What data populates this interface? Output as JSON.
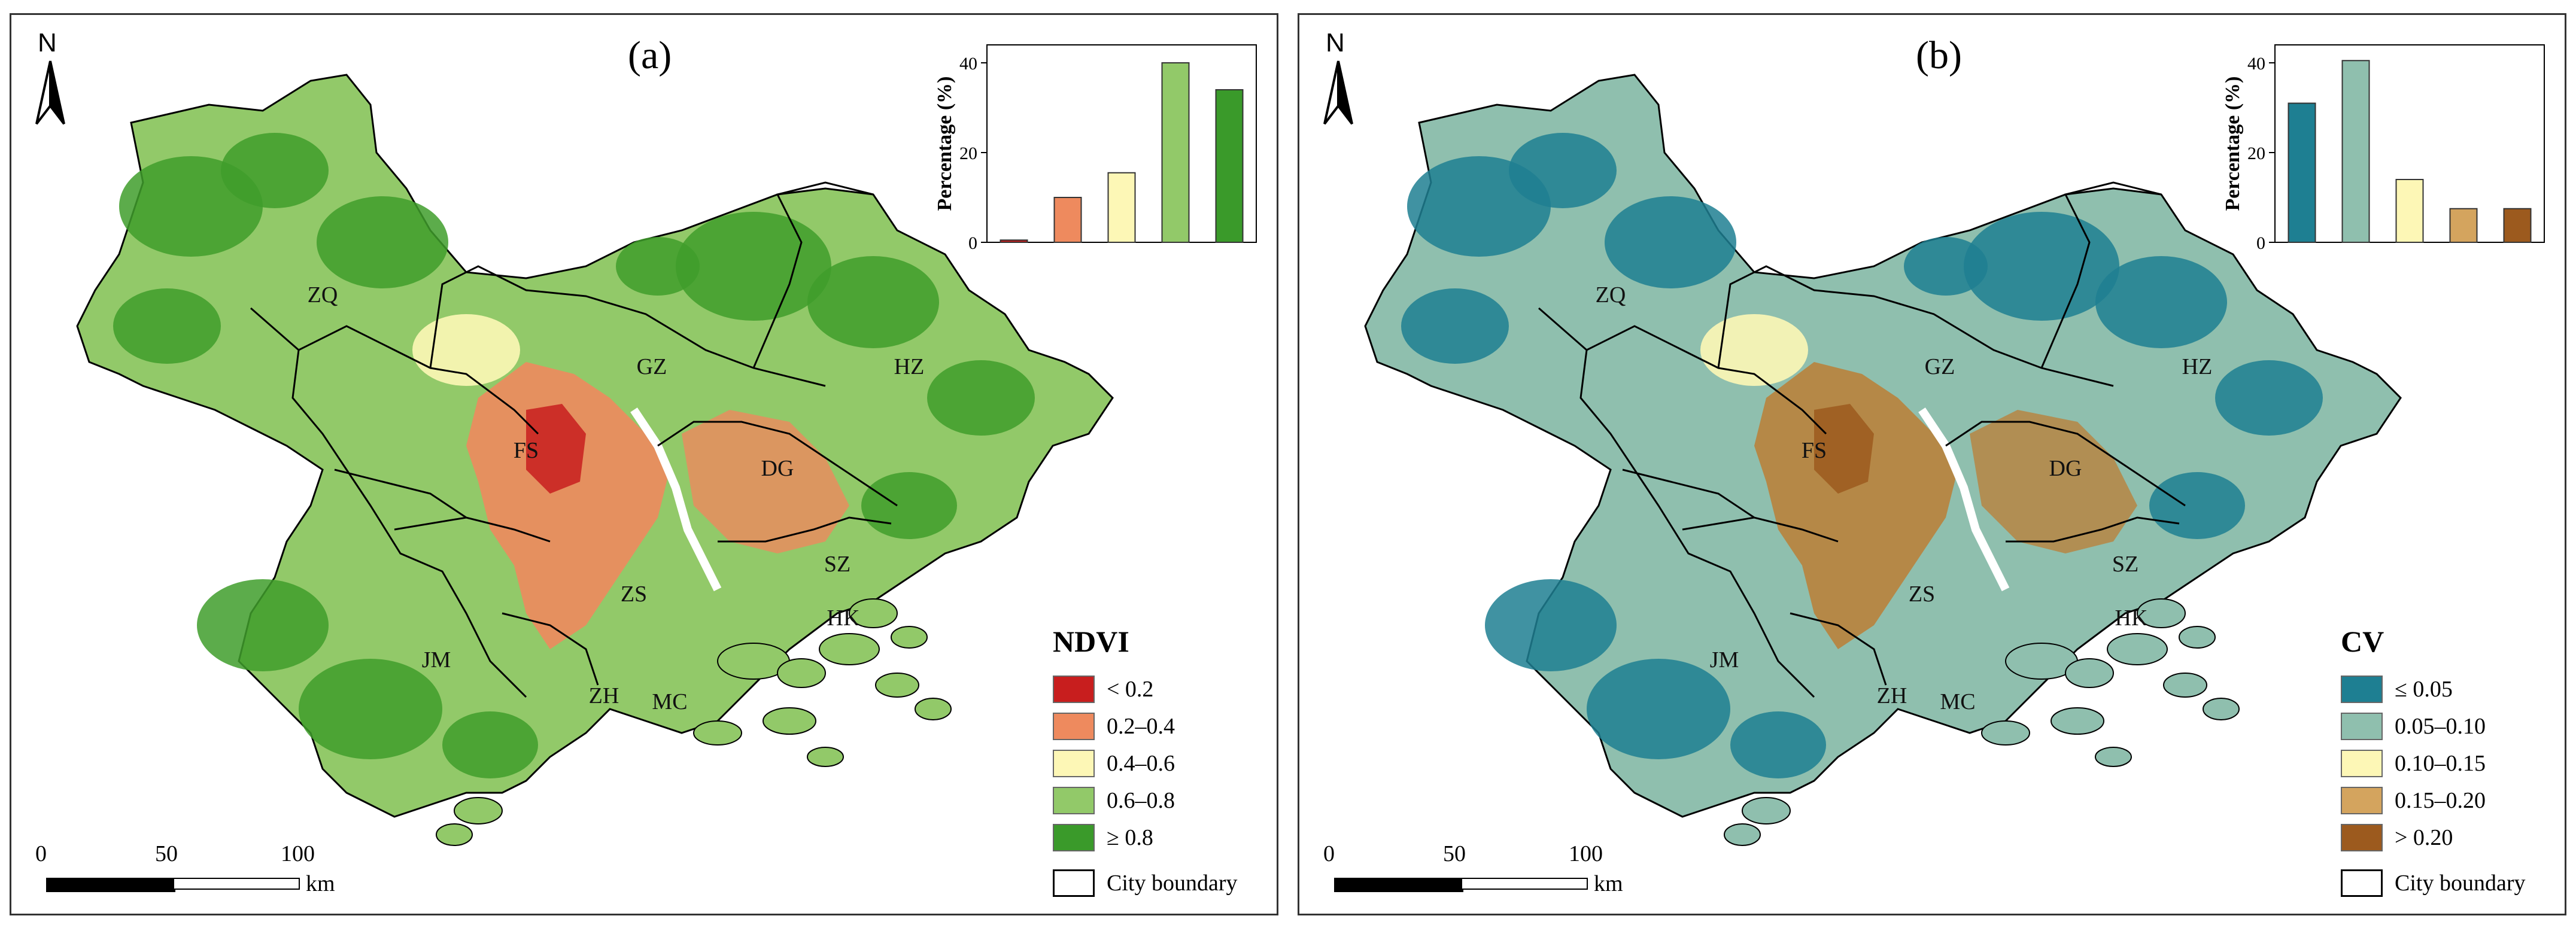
{
  "panels": [
    {
      "label": "(a)",
      "north": "N",
      "cities": [
        "ZQ",
        "GZ",
        "HZ",
        "FS",
        "DG",
        "SZ",
        "ZS",
        "HK",
        "JM",
        "ZH",
        "MC"
      ],
      "legend": {
        "title": "NDVI",
        "items": [
          {
            "label": "< 0.2",
            "color": "#c81e1e"
          },
          {
            "label": "0.2–0.4",
            "color": "#ee8a5e"
          },
          {
            "label": "0.4–0.6",
            "color": "#fdf7b6"
          },
          {
            "label": "0.6–0.8",
            "color": "#92c969"
          },
          {
            "label": "≥ 0.8",
            "color": "#3a9a2a"
          }
        ],
        "boundary_label": "City boundary"
      },
      "scale": {
        "ticks": [
          "0",
          "50",
          "100"
        ],
        "unit": "km"
      },
      "palette": {
        "base": "#3f9d2c",
        "mid": "#92c969",
        "urban": "#ee8a5e",
        "urban2": "#fdf7b6",
        "core": "#c81e1e"
      }
    },
    {
      "label": "(b)",
      "north": "N",
      "cities": [
        "ZQ",
        "GZ",
        "HZ",
        "FS",
        "DG",
        "SZ",
        "ZS",
        "HK",
        "JM",
        "ZH",
        "MC"
      ],
      "legend": {
        "title": "CV",
        "items": [
          {
            "label": "≤ 0.05",
            "color": "#1e7f92"
          },
          {
            "label": "0.05–0.10",
            "color": "#8fbfae"
          },
          {
            "label": "0.10–0.15",
            "color": "#fdf7b6"
          },
          {
            "label": "0.15–0.20",
            "color": "#d4a45e"
          },
          {
            "label": "> 0.20",
            "color": "#9c5a1e"
          }
        ],
        "boundary_label": "City boundary"
      },
      "scale": {
        "ticks": [
          "0",
          "50",
          "100"
        ],
        "unit": "km"
      },
      "palette": {
        "base": "#1e7f92",
        "mid": "#8fbfae",
        "urban": "#b9823c",
        "urban2": "#fdf7b6",
        "core": "#9c5a1e"
      }
    }
  ],
  "chart_data": [
    {
      "type": "bar",
      "panel": "(a)",
      "categories": [
        "< 0.2",
        "0.2–0.4",
        "0.4–0.6",
        "0.6–0.8",
        "≥ 0.8"
      ],
      "values": [
        0.5,
        10,
        15.5,
        40,
        34
      ],
      "colors": [
        "#c81e1e",
        "#ee8a5e",
        "#fdf7b6",
        "#92c969",
        "#3a9a2a"
      ],
      "ylabel": "Percentage (%)",
      "yticks": [
        "0",
        "20",
        "40"
      ],
      "ylim": [
        0,
        44
      ]
    },
    {
      "type": "bar",
      "panel": "(b)",
      "categories": [
        "≤ 0.05",
        "0.05–0.10",
        "0.10–0.15",
        "0.15–0.20",
        "> 0.20"
      ],
      "values": [
        31,
        40.5,
        14,
        7.5,
        7.5
      ],
      "colors": [
        "#1e7f92",
        "#8fbfae",
        "#fdf7b6",
        "#d4a45e",
        "#9c5a1e"
      ],
      "ylabel": "Percentage (%)",
      "yticks": [
        "0",
        "20",
        "40"
      ],
      "ylim": [
        0,
        44
      ]
    }
  ]
}
